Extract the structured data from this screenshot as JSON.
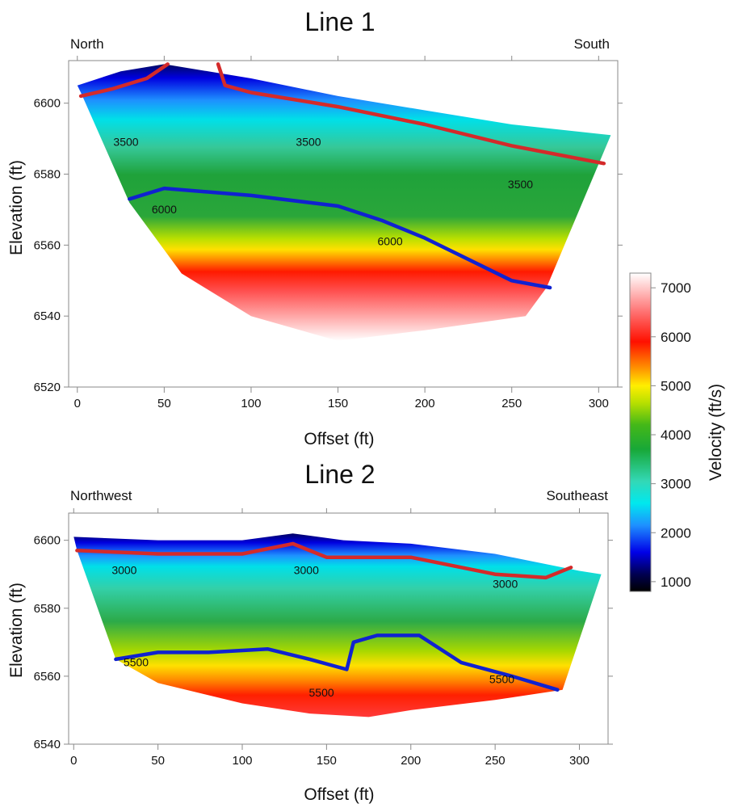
{
  "chart_data": [
    {
      "type": "heatmap",
      "title": "Line 1",
      "left_label": "North",
      "right_label": "South",
      "xlabel": "Offset (ft)",
      "ylabel": "Elevation (ft)",
      "xlim": [
        -5,
        311
      ],
      "ylim": [
        6520,
        6612
      ],
      "xticks": [
        0,
        50,
        100,
        150,
        200,
        250,
        300
      ],
      "yticks": [
        6520,
        6540,
        6560,
        6580,
        6600
      ],
      "grid": false,
      "surface": [
        [
          0,
          6605
        ],
        [
          25,
          6609
        ],
        [
          50,
          6611
        ],
        [
          100,
          6607
        ],
        [
          150,
          6602
        ],
        [
          200,
          6598
        ],
        [
          250,
          6594
        ],
        [
          307,
          6591
        ]
      ],
      "base": [
        [
          307,
          6591
        ],
        [
          270,
          6548
        ],
        [
          258,
          6540
        ],
        [
          200,
          6536
        ],
        [
          150,
          6533
        ],
        [
          100,
          6540
        ],
        [
          60,
          6552
        ],
        [
          30,
          6572
        ],
        [
          2,
          6603
        ]
      ],
      "red_boundary": [
        [
          [
            2,
            6602
          ],
          [
            20,
            6604
          ],
          [
            40,
            6607
          ],
          [
            52,
            6611
          ]
        ],
        [
          [
            81,
            6611
          ],
          [
            85,
            6605
          ],
          [
            100,
            6603
          ],
          [
            150,
            6599
          ],
          [
            200,
            6594
          ],
          [
            250,
            6588
          ],
          [
            303,
            6583
          ]
        ]
      ],
      "blue_boundary": [
        [
          30,
          6573
        ],
        [
          50,
          6576
        ],
        [
          100,
          6574
        ],
        [
          150,
          6571
        ],
        [
          175,
          6567
        ],
        [
          200,
          6562
        ],
        [
          250,
          6550
        ],
        [
          272,
          6548
        ]
      ],
      "contour_labels": [
        {
          "text": "3500",
          "x": 28,
          "y": 6588
        },
        {
          "text": "3500",
          "x": 133,
          "y": 6588
        },
        {
          "text": "3500",
          "x": 255,
          "y": 6576
        },
        {
          "text": "6000",
          "x": 50,
          "y": 6569
        },
        {
          "text": "6000",
          "x": 180,
          "y": 6560
        }
      ]
    },
    {
      "type": "heatmap",
      "title": "Line 2",
      "left_label": "Northwest",
      "right_label": "Southeast",
      "xlabel": "Offset (ft)",
      "ylabel": "Elevation (ft)",
      "xlim": [
        -3,
        317
      ],
      "ylim": [
        6540,
        6608
      ],
      "xticks": [
        0,
        50,
        100,
        150,
        200,
        250,
        300
      ],
      "yticks": [
        6540,
        6560,
        6580,
        6600
      ],
      "grid": false,
      "surface": [
        [
          0,
          6601
        ],
        [
          50,
          6600
        ],
        [
          100,
          6600
        ],
        [
          130,
          6602
        ],
        [
          160,
          6600
        ],
        [
          200,
          6599
        ],
        [
          250,
          6596
        ],
        [
          300,
          6591
        ],
        [
          313,
          6590
        ]
      ],
      "base": [
        [
          313,
          6590
        ],
        [
          290,
          6556
        ],
        [
          250,
          6553
        ],
        [
          200,
          6550
        ],
        [
          175,
          6548
        ],
        [
          140,
          6549
        ],
        [
          100,
          6552
        ],
        [
          50,
          6558
        ],
        [
          25,
          6565
        ],
        [
          2,
          6597
        ]
      ],
      "red_boundary": [
        [
          2,
          6597
        ],
        [
          50,
          6596
        ],
        [
          100,
          6596
        ],
        [
          130,
          6599
        ],
        [
          150,
          6595
        ],
        [
          200,
          6595
        ],
        [
          250,
          6590
        ],
        [
          280,
          6589
        ],
        [
          295,
          6592
        ]
      ],
      "blue_boundary": [
        [
          25,
          6565
        ],
        [
          50,
          6567
        ],
        [
          80,
          6567
        ],
        [
          115,
          6568
        ],
        [
          140,
          6565
        ],
        [
          162,
          6562
        ],
        [
          166,
          6570
        ],
        [
          180,
          6572
        ],
        [
          205,
          6572
        ],
        [
          230,
          6564
        ],
        [
          260,
          6560
        ],
        [
          287,
          6556
        ]
      ],
      "contour_labels": [
        {
          "text": "3000",
          "x": 30,
          "y": 6590
        },
        {
          "text": "3000",
          "x": 138,
          "y": 6590
        },
        {
          "text": "3000",
          "x": 256,
          "y": 6586
        },
        {
          "text": "5500",
          "x": 37,
          "y": 6563
        },
        {
          "text": "5500",
          "x": 147,
          "y": 6554
        },
        {
          "text": "5500",
          "x": 254,
          "y": 6558
        }
      ]
    }
  ],
  "colorbar": {
    "label": "Velocity (ft/s)",
    "ticks": [
      1000,
      2000,
      3000,
      4000,
      5000,
      6000,
      7000
    ],
    "range": [
      800,
      7300
    ],
    "stops": [
      {
        "v": 800,
        "color": "#000000"
      },
      {
        "v": 1150,
        "color": "#000050"
      },
      {
        "v": 1600,
        "color": "#0000e8"
      },
      {
        "v": 2150,
        "color": "#1e90ff"
      },
      {
        "v": 2600,
        "color": "#00e8ee"
      },
      {
        "v": 3050,
        "color": "#33d8b6"
      },
      {
        "v": 3700,
        "color": "#18a838"
      },
      {
        "v": 4200,
        "color": "#44b818"
      },
      {
        "v": 4650,
        "color": "#b8e000"
      },
      {
        "v": 5000,
        "color": "#ffee00"
      },
      {
        "v": 5400,
        "color": "#ff8800"
      },
      {
        "v": 5900,
        "color": "#ff1000"
      },
      {
        "v": 6500,
        "color": "#ff7070"
      },
      {
        "v": 7300,
        "color": "#ffffff"
      }
    ]
  },
  "colors": {
    "red_line": "#d42a2a",
    "blue_line": "#1022d0",
    "axis": "#8a8a8a"
  }
}
